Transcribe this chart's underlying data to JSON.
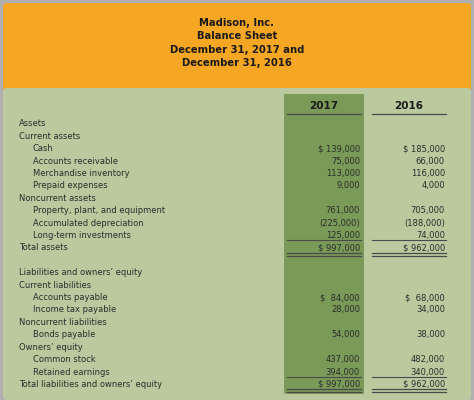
{
  "title_lines": [
    "Madison, Inc.",
    "Balance Sheet",
    "December 31, 2017 and",
    "December 31, 2016"
  ],
  "header_bg": "#F5A623",
  "col2_bg": "#7A9A58",
  "body_bg": "#BAC99E",
  "outer_bg": "#B0B0B0",
  "rows": [
    {
      "label": "Assets",
      "val2017": "",
      "val2016": "",
      "indent": 0,
      "underline": false,
      "double_underline": false
    },
    {
      "label": "Current assets",
      "val2017": "",
      "val2016": "",
      "indent": 0,
      "underline": false,
      "double_underline": false
    },
    {
      "label": "Cash",
      "val2017": "$ 139,000",
      "val2016": "$ 185,000",
      "indent": 1,
      "underline": false,
      "double_underline": false
    },
    {
      "label": "Accounts receivable",
      "val2017": "75,000",
      "val2016": "66,000",
      "indent": 1,
      "underline": false,
      "double_underline": false
    },
    {
      "label": "Merchandise inventory",
      "val2017": "113,000",
      "val2016": "116,000",
      "indent": 1,
      "underline": false,
      "double_underline": false
    },
    {
      "label": "Prepaid expenses",
      "val2017": "9,000",
      "val2016": "4,000",
      "indent": 1,
      "underline": false,
      "double_underline": false
    },
    {
      "label": "Noncurrent assets",
      "val2017": "",
      "val2016": "",
      "indent": 0,
      "underline": false,
      "double_underline": false
    },
    {
      "label": "Property, plant, and equipment",
      "val2017": "761,000",
      "val2016": "705,000",
      "indent": 1,
      "underline": false,
      "double_underline": false
    },
    {
      "label": "Accumulated depreciation",
      "val2017": "(225,000)",
      "val2016": "(188,000)",
      "indent": 1,
      "underline": false,
      "double_underline": false
    },
    {
      "label": "Long-term investments",
      "val2017": "125,000",
      "val2016": "74,000",
      "indent": 1,
      "underline": true,
      "double_underline": false
    },
    {
      "label": "Total assets",
      "val2017": "$ 997,000",
      "val2016": "$ 962,000",
      "indent": 0,
      "underline": false,
      "double_underline": true
    },
    {
      "label": "",
      "val2017": "",
      "val2016": "",
      "indent": 0,
      "underline": false,
      "double_underline": false
    },
    {
      "label": "Liabilities and owners’ equity",
      "val2017": "",
      "val2016": "",
      "indent": 0,
      "underline": false,
      "double_underline": false
    },
    {
      "label": "Current liabilities",
      "val2017": "",
      "val2016": "",
      "indent": 0,
      "underline": false,
      "double_underline": false
    },
    {
      "label": "Accounts payable",
      "val2017": "$  84,000",
      "val2016": "$  68,000",
      "indent": 1,
      "underline": false,
      "double_underline": false
    },
    {
      "label": "Income tax payable",
      "val2017": "28,000",
      "val2016": "34,000",
      "indent": 1,
      "underline": false,
      "double_underline": false
    },
    {
      "label": "Noncurrent liabilities",
      "val2017": "",
      "val2016": "",
      "indent": 0,
      "underline": false,
      "double_underline": false
    },
    {
      "label": "Bonds payable",
      "val2017": "54,000",
      "val2016": "38,000",
      "indent": 1,
      "underline": false,
      "double_underline": false
    },
    {
      "label": "Owners’ equity",
      "val2017": "",
      "val2016": "",
      "indent": 0,
      "underline": false,
      "double_underline": false
    },
    {
      "label": "Common stock",
      "val2017": "437,000",
      "val2016": "482,000",
      "indent": 1,
      "underline": false,
      "double_underline": false
    },
    {
      "label": "Retained earnings",
      "val2017": "394,000",
      "val2016": "340,000",
      "indent": 1,
      "underline": true,
      "double_underline": false
    },
    {
      "label": "Total liabilities and owners’ equity",
      "val2017": "$ 997,000",
      "val2016": "$ 962,000",
      "indent": 0,
      "underline": false,
      "double_underline": true
    }
  ],
  "text_color": "#2C2C2C",
  "title_color": "#1A1A1A"
}
